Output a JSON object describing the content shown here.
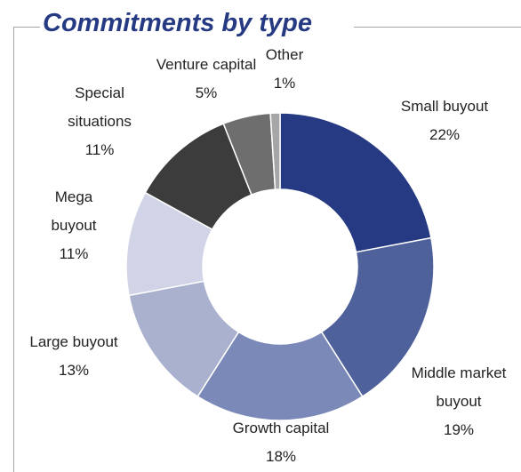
{
  "chart_data": {
    "type": "donut",
    "title": "Commitments by type",
    "categories": [
      "Small buyout",
      "Middle market buyout",
      "Growth capital",
      "Large buyout",
      "Mega buyout",
      "Special situations",
      "Venture capital",
      "Other"
    ],
    "values": [
      22,
      19,
      18,
      13,
      11,
      11,
      5,
      1
    ],
    "value_labels": [
      "22%",
      "19%",
      "18%",
      "13%",
      "11%",
      "11%",
      "5%",
      "1%"
    ],
    "colors": [
      "#253a82",
      "#4f619b",
      "#7b89b8",
      "#a9b1cf",
      "#d0d4e6",
      "#3c3c3c",
      "#6e6e6e",
      "#a6a6a6"
    ]
  }
}
